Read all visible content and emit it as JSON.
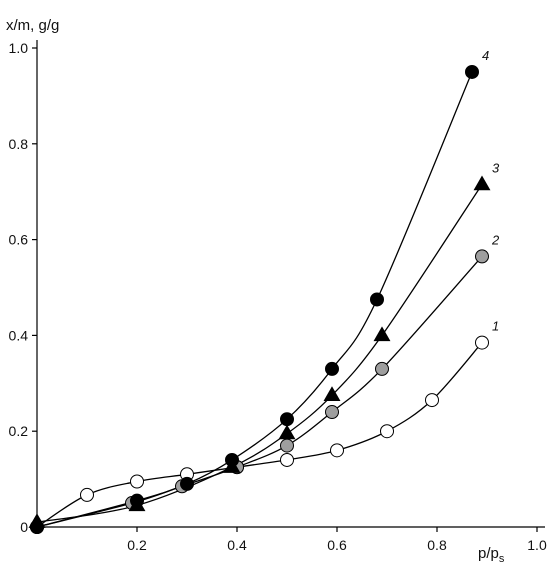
{
  "chart_data": {
    "type": "scatter",
    "xlabel": "p/p",
    "xlabel_sub": "s",
    "ylabel": "x/m, g/g",
    "xlim": [
      0,
      1.0
    ],
    "ylim": [
      0,
      1.0
    ],
    "xticks": [
      0.2,
      0.4,
      0.6,
      0.8,
      1.0
    ],
    "xtick_labels": [
      "0.2",
      "0.4",
      "0.6",
      "0.8",
      "1.0"
    ],
    "yticks": [
      0,
      0.2,
      0.4,
      0.6,
      0.8,
      1.0
    ],
    "ytick_labels": [
      "0",
      "0.2",
      "0.4",
      "0.6",
      "0.8",
      "1.0"
    ],
    "grid": false,
    "series": [
      {
        "label": "1",
        "marker": "circle",
        "fill": "#ffffff",
        "stroke": "#000000",
        "x": [
          0.0,
          0.1,
          0.2,
          0.3,
          0.4,
          0.5,
          0.6,
          0.7,
          0.79,
          0.89
        ],
        "y": [
          0.0,
          0.067,
          0.095,
          0.11,
          0.125,
          0.14,
          0.16,
          0.2,
          0.265,
          0.385
        ]
      },
      {
        "label": "2",
        "marker": "circle",
        "fill": "#9e9e9e",
        "stroke": "#000000",
        "x": [
          0.0,
          0.19,
          0.29,
          0.4,
          0.5,
          0.59,
          0.69,
          0.89
        ],
        "y": [
          0.0,
          0.05,
          0.085,
          0.125,
          0.17,
          0.24,
          0.33,
          0.565
        ]
      },
      {
        "label": "3",
        "marker": "triangle",
        "fill": "#000000",
        "stroke": "#000000",
        "x": [
          0.0,
          0.2,
          0.39,
          0.5,
          0.59,
          0.69,
          0.89
        ],
        "y": [
          0.01,
          0.045,
          0.125,
          0.195,
          0.275,
          0.4,
          0.715
        ]
      },
      {
        "label": "4",
        "marker": "circle",
        "fill": "#000000",
        "stroke": "#000000",
        "x": [
          0.0,
          0.2,
          0.3,
          0.39,
          0.5,
          0.59,
          0.68,
          0.87
        ],
        "y": [
          0.0,
          0.055,
          0.09,
          0.14,
          0.225,
          0.33,
          0.475,
          0.95
        ]
      }
    ]
  }
}
